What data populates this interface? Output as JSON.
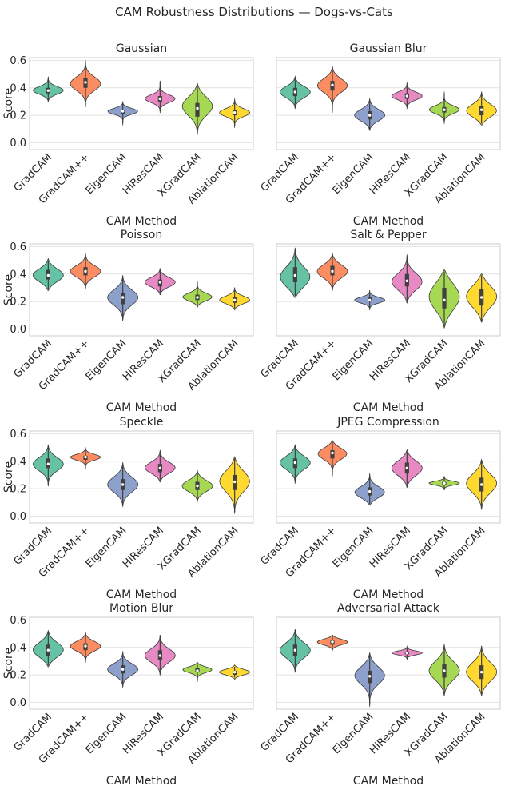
{
  "chart_data": {
    "type": "violin",
    "title": "CAM Robustness Distributions — Dogs-vs-Cats",
    "xlabel": "CAM Method",
    "ylabel": "Score",
    "ylim": [
      -0.05,
      0.62
    ],
    "yticks": [
      "0.0",
      "0.2",
      "0.4",
      "0.6"
    ],
    "categories": [
      "GradCAM",
      "GradCAM++",
      "EigenCAM",
      "HiResCAM",
      "XGradCAM",
      "AblationCAM"
    ],
    "colors": [
      "#66c2a5",
      "#fc8d62",
      "#8da0cb",
      "#e78ac3",
      "#a6d854",
      "#ffd92f"
    ],
    "panels": [
      {
        "title": "Gaussian",
        "violins": [
          {
            "min": 0.31,
            "max": 0.47,
            "q1": 0.36,
            "median": 0.38,
            "q3": 0.4,
            "mode": 0.38
          },
          {
            "min": 0.27,
            "max": 0.59,
            "q1": 0.4,
            "median": 0.44,
            "q3": 0.47,
            "mode": 0.43
          },
          {
            "min": 0.14,
            "max": 0.29,
            "q1": 0.21,
            "median": 0.23,
            "q3": 0.24,
            "mode": 0.23
          },
          {
            "min": 0.23,
            "max": 0.44,
            "q1": 0.3,
            "median": 0.32,
            "q3": 0.34,
            "mode": 0.32
          },
          {
            "min": 0.07,
            "max": 0.42,
            "q1": 0.19,
            "median": 0.25,
            "q3": 0.29,
            "mode": 0.27
          },
          {
            "min": 0.12,
            "max": 0.31,
            "q1": 0.2,
            "median": 0.22,
            "q3": 0.24,
            "mode": 0.22
          }
        ]
      },
      {
        "title": "Gaussian Blur",
        "violins": [
          {
            "min": 0.26,
            "max": 0.47,
            "q1": 0.34,
            "median": 0.37,
            "q3": 0.4,
            "mode": 0.37
          },
          {
            "min": 0.23,
            "max": 0.55,
            "q1": 0.38,
            "median": 0.42,
            "q3": 0.45,
            "mode": 0.42
          },
          {
            "min": 0.1,
            "max": 0.31,
            "q1": 0.17,
            "median": 0.2,
            "q3": 0.23,
            "mode": 0.2
          },
          {
            "min": 0.26,
            "max": 0.43,
            "q1": 0.32,
            "median": 0.34,
            "q3": 0.36,
            "mode": 0.34
          },
          {
            "min": 0.15,
            "max": 0.36,
            "q1": 0.22,
            "median": 0.24,
            "q3": 0.26,
            "mode": 0.24
          },
          {
            "min": 0.14,
            "max": 0.36,
            "q1": 0.2,
            "median": 0.24,
            "q3": 0.27,
            "mode": 0.23
          }
        ]
      },
      {
        "title": "Poisson",
        "violins": [
          {
            "min": 0.29,
            "max": 0.5,
            "q1": 0.36,
            "median": 0.39,
            "q3": 0.43,
            "mode": 0.39
          },
          {
            "min": 0.3,
            "max": 0.54,
            "q1": 0.39,
            "median": 0.42,
            "q3": 0.45,
            "mode": 0.42
          },
          {
            "min": 0.07,
            "max": 0.38,
            "q1": 0.18,
            "median": 0.23,
            "q3": 0.26,
            "mode": 0.23
          },
          {
            "min": 0.26,
            "max": 0.43,
            "q1": 0.31,
            "median": 0.34,
            "q3": 0.36,
            "mode": 0.34
          },
          {
            "min": 0.17,
            "max": 0.34,
            "q1": 0.21,
            "median": 0.23,
            "q3": 0.25,
            "mode": 0.23
          },
          {
            "min": 0.15,
            "max": 0.29,
            "q1": 0.19,
            "median": 0.21,
            "q3": 0.23,
            "mode": 0.21
          }
        ]
      },
      {
        "title": "Salt & Pepper",
        "violins": [
          {
            "min": 0.24,
            "max": 0.58,
            "q1": 0.34,
            "median": 0.39,
            "q3": 0.45,
            "mode": 0.37
          },
          {
            "min": 0.29,
            "max": 0.54,
            "q1": 0.39,
            "median": 0.42,
            "q3": 0.46,
            "mode": 0.42
          },
          {
            "min": 0.15,
            "max": 0.27,
            "q1": 0.2,
            "median": 0.21,
            "q3": 0.23,
            "mode": 0.21
          },
          {
            "min": 0.2,
            "max": 0.53,
            "q1": 0.31,
            "median": 0.35,
            "q3": 0.4,
            "mode": 0.34
          },
          {
            "min": 0.02,
            "max": 0.42,
            "q1": 0.15,
            "median": 0.21,
            "q3": 0.3,
            "mode": 0.24
          },
          {
            "min": 0.06,
            "max": 0.39,
            "q1": 0.17,
            "median": 0.23,
            "q3": 0.29,
            "mode": 0.24
          }
        ]
      },
      {
        "title": "Speckle",
        "violins": [
          {
            "min": 0.23,
            "max": 0.51,
            "q1": 0.35,
            "median": 0.38,
            "q3": 0.42,
            "mode": 0.38
          },
          {
            "min": 0.35,
            "max": 0.49,
            "q1": 0.41,
            "median": 0.43,
            "q3": 0.44,
            "mode": 0.43
          },
          {
            "min": 0.08,
            "max": 0.38,
            "q1": 0.19,
            "median": 0.23,
            "q3": 0.27,
            "mode": 0.23
          },
          {
            "min": 0.26,
            "max": 0.47,
            "q1": 0.32,
            "median": 0.35,
            "q3": 0.38,
            "mode": 0.35
          },
          {
            "min": 0.12,
            "max": 0.32,
            "q1": 0.19,
            "median": 0.22,
            "q3": 0.25,
            "mode": 0.22
          },
          {
            "min": 0.03,
            "max": 0.42,
            "q1": 0.19,
            "median": 0.25,
            "q3": 0.3,
            "mode": 0.26
          }
        ]
      },
      {
        "title": "JPEG Compression",
        "violins": [
          {
            "min": 0.25,
            "max": 0.51,
            "q1": 0.35,
            "median": 0.39,
            "q3": 0.42,
            "mode": 0.39
          },
          {
            "min": 0.3,
            "max": 0.54,
            "q1": 0.42,
            "median": 0.46,
            "q3": 0.48,
            "mode": 0.46
          },
          {
            "min": 0.09,
            "max": 0.3,
            "q1": 0.15,
            "median": 0.18,
            "q3": 0.21,
            "mode": 0.17
          },
          {
            "min": 0.22,
            "max": 0.47,
            "q1": 0.31,
            "median": 0.35,
            "q3": 0.39,
            "mode": 0.35
          },
          {
            "min": 0.2,
            "max": 0.28,
            "q1": 0.23,
            "median": 0.24,
            "q3": 0.25,
            "mode": 0.24
          },
          {
            "min": 0.06,
            "max": 0.4,
            "q1": 0.18,
            "median": 0.23,
            "q3": 0.28,
            "mode": 0.24
          }
        ]
      },
      {
        "title": "Motion Blur",
        "violins": [
          {
            "min": 0.27,
            "max": 0.51,
            "q1": 0.34,
            "median": 0.38,
            "q3": 0.42,
            "mode": 0.38
          },
          {
            "min": 0.3,
            "max": 0.5,
            "q1": 0.38,
            "median": 0.41,
            "q3": 0.43,
            "mode": 0.41
          },
          {
            "min": 0.12,
            "max": 0.36,
            "q1": 0.21,
            "median": 0.24,
            "q3": 0.27,
            "mode": 0.24
          },
          {
            "min": 0.21,
            "max": 0.48,
            "q1": 0.31,
            "median": 0.34,
            "q3": 0.38,
            "mode": 0.34
          },
          {
            "min": 0.16,
            "max": 0.28,
            "q1": 0.22,
            "median": 0.23,
            "q3": 0.25,
            "mode": 0.24
          },
          {
            "min": 0.18,
            "max": 0.26,
            "q1": 0.2,
            "median": 0.22,
            "q3": 0.23,
            "mode": 0.22
          }
        ]
      },
      {
        "title": "Adversarial Attack",
        "violins": [
          {
            "min": 0.23,
            "max": 0.52,
            "q1": 0.34,
            "median": 0.38,
            "q3": 0.42,
            "mode": 0.38
          },
          {
            "min": 0.39,
            "max": 0.48,
            "q1": 0.42,
            "median": 0.44,
            "q3": 0.45,
            "mode": 0.44
          },
          {
            "min": -0.02,
            "max": 0.35,
            "q1": 0.14,
            "median": 0.19,
            "q3": 0.23,
            "mode": 0.2
          },
          {
            "min": 0.32,
            "max": 0.4,
            "q1": 0.35,
            "median": 0.36,
            "q3": 0.37,
            "mode": 0.36
          },
          {
            "min": 0.06,
            "max": 0.41,
            "q1": 0.18,
            "median": 0.23,
            "q3": 0.28,
            "mode": 0.23
          },
          {
            "min": 0.06,
            "max": 0.4,
            "q1": 0.17,
            "median": 0.22,
            "q3": 0.27,
            "mode": 0.22
          }
        ]
      }
    ]
  }
}
